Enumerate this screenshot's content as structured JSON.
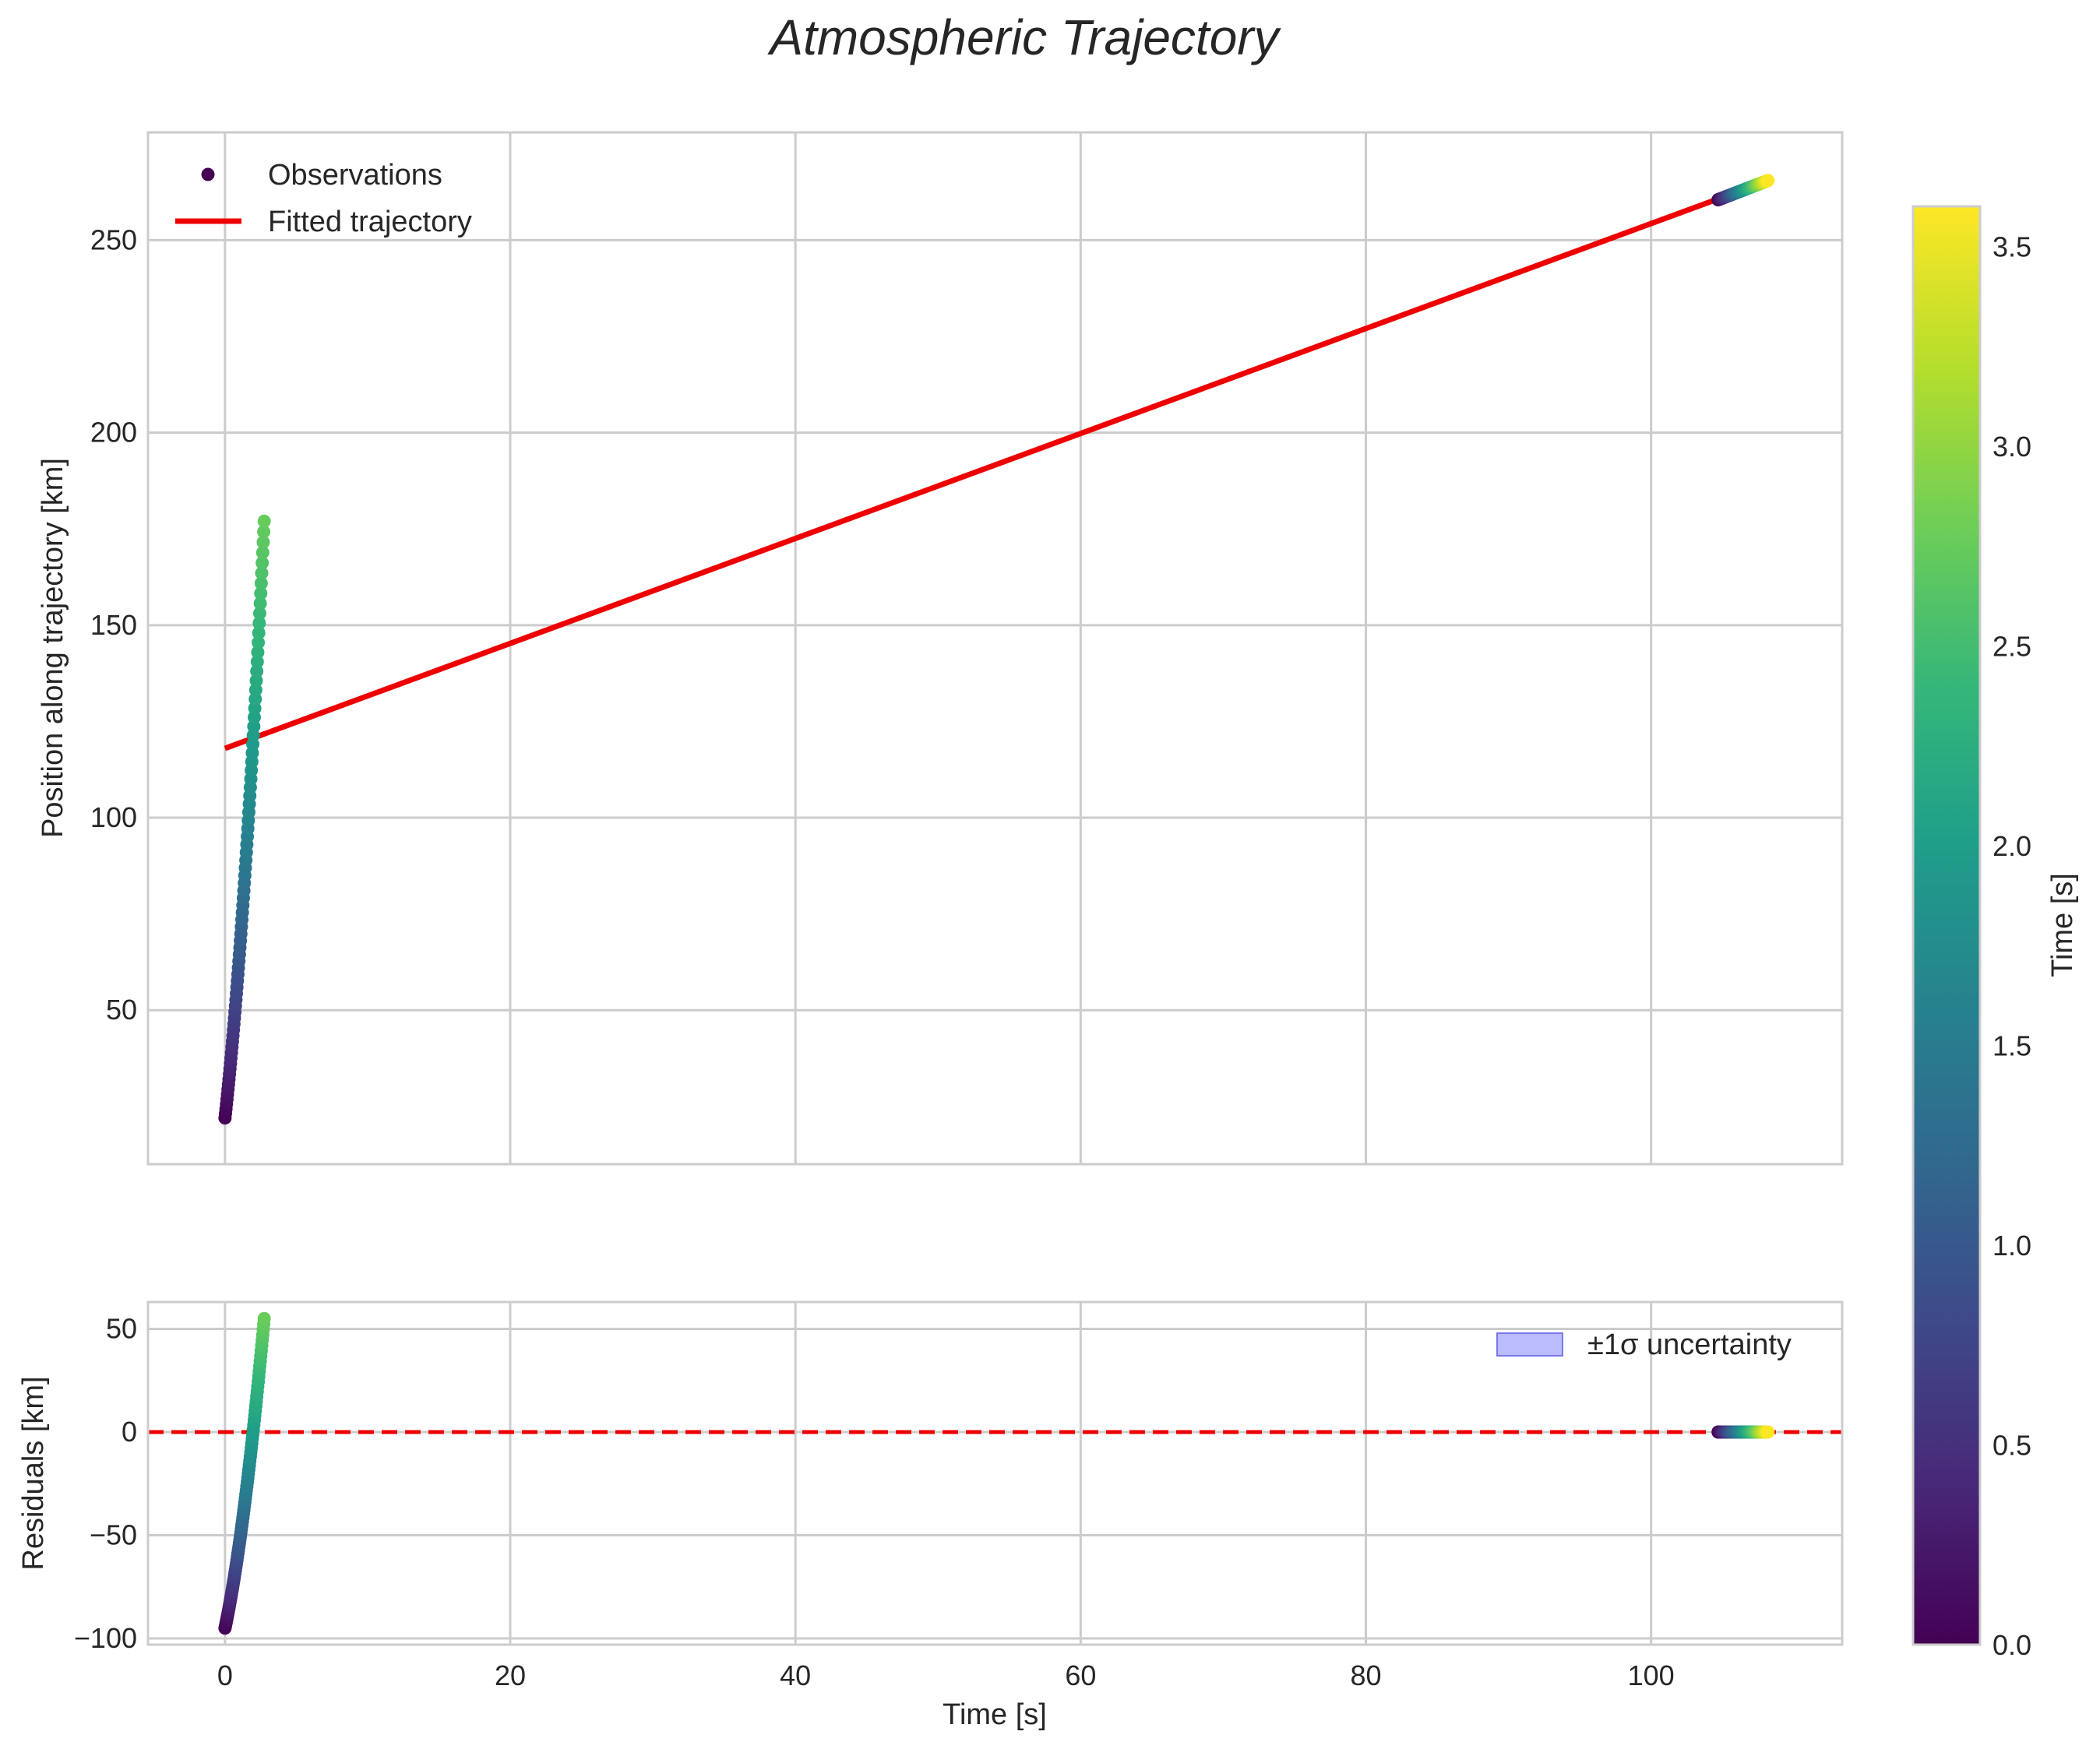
{
  "title": "Atmospheric Trajectory",
  "chart_data": [
    {
      "type": "scatter",
      "panel": "main",
      "xlim": [
        -5.4,
        113.4
      ],
      "ylim": [
        10,
        278
      ],
      "xlabel": "",
      "ylabel": "Position along trajectory [km]",
      "xticks": [
        0,
        20,
        40,
        60,
        80,
        100
      ],
      "xtick_labels": [
        "0",
        "20",
        "40",
        "60",
        "80",
        "100"
      ],
      "yticks": [
        50,
        100,
        150,
        200,
        250
      ],
      "ytick_labels": [
        "50",
        "100",
        "150",
        "200",
        "250"
      ],
      "grid": true,
      "legend": {
        "location": "upper-left",
        "entries": [
          {
            "label": "Observations",
            "kind": "marker",
            "color": "#440154"
          },
          {
            "label": "Fitted trajectory",
            "kind": "line",
            "color": "#ee0000"
          }
        ]
      },
      "series": [
        {
          "name": "Observations",
          "kind": "scatter",
          "colormap": "viridis",
          "clusters": [
            {
              "t_start": 0.0,
              "t_end": 2.75,
              "n": 80,
              "x_start": 0.0,
              "x_end": 2.75,
              "y_start": 22,
              "y_end": 177,
              "y_shape": "curved"
            },
            {
              "t_start": 0.0,
              "t_end": 3.6,
              "n": 90,
              "x_start": 104.7,
              "x_end": 108.2,
              "y_start": 260.5,
              "y_end": 265.5,
              "y_shape": "linear"
            }
          ]
        },
        {
          "name": "Fitted trajectory",
          "kind": "line",
          "color": "#ee0000",
          "x": [
            0,
            108.2
          ],
          "y": [
            118,
            265.5
          ]
        }
      ]
    },
    {
      "type": "scatter",
      "panel": "residuals",
      "xlim": [
        -5.4,
        113.4
      ],
      "ylim": [
        -103,
        63
      ],
      "xlabel": "Time [s]",
      "ylabel": "Residuals [km]",
      "xticks": [
        0,
        20,
        40,
        60,
        80,
        100
      ],
      "xtick_labels": [
        "0",
        "20",
        "40",
        "60",
        "80",
        "100"
      ],
      "yticks": [
        -100,
        -50,
        0,
        50
      ],
      "ytick_labels": [
        "−100",
        "−50",
        "0",
        "50"
      ],
      "grid": true,
      "legend": {
        "location": "upper-right",
        "entries": [
          {
            "label": "±1σ uncertainty",
            "kind": "patch",
            "color": "#aaaaff"
          }
        ]
      },
      "zero_line": {
        "y": 0,
        "style": "dashed",
        "color": "#ee0000"
      },
      "series": [
        {
          "name": "Residuals",
          "kind": "scatter",
          "colormap": "viridis",
          "clusters": [
            {
              "t_start": 0.0,
              "t_end": 2.75,
              "n": 80,
              "x_start": 0.0,
              "x_end": 2.75,
              "y_start": -95,
              "y_end": 55,
              "y_shape": "curved"
            },
            {
              "t_start": 0.0,
              "t_end": 3.6,
              "n": 90,
              "x_start": 104.7,
              "x_end": 108.2,
              "y_start": 0,
              "y_end": 0,
              "y_shape": "linear"
            }
          ]
        }
      ]
    }
  ],
  "colorbar": {
    "label": "Time [s]",
    "range": [
      0.0,
      3.6
    ],
    "ticks": [
      0.0,
      0.5,
      1.0,
      1.5,
      2.0,
      2.5,
      3.0,
      3.5
    ],
    "tick_labels": [
      "0.0",
      "0.5",
      "1.0",
      "1.5",
      "2.0",
      "2.5",
      "3.0",
      "3.5"
    ],
    "colormap_stops": [
      "#440154",
      "#482878",
      "#3e4989",
      "#31688e",
      "#26828e",
      "#1f9e89",
      "#35b779",
      "#6ece58",
      "#b5de2b",
      "#fde725"
    ]
  }
}
